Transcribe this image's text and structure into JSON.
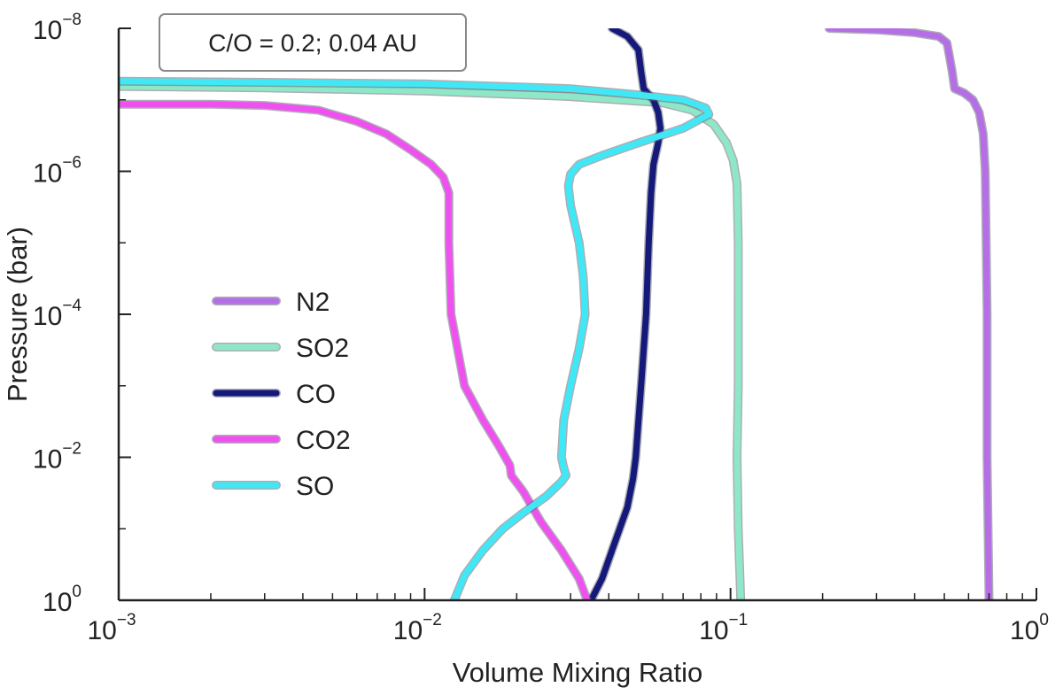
{
  "chart_data": {
    "type": "line",
    "title": "",
    "xlabel": "Volume Mixing Ratio",
    "ylabel": "Pressure (bar)",
    "xscale": "log",
    "yscale": "log",
    "xlim": [
      0.001,
      1
    ],
    "ylim": [
      1e-08,
      1
    ],
    "y_inverted": true,
    "grid": false,
    "x_ticks": [
      {
        "base": "10",
        "exp": "−3",
        "value": 0.001
      },
      {
        "base": "10",
        "exp": "−2",
        "value": 0.01
      },
      {
        "base": "10",
        "exp": "−1",
        "value": 0.1
      },
      {
        "base": "10",
        "exp": "0",
        "value": 1
      }
    ],
    "y_ticks": [
      {
        "base": "10",
        "exp": "−8",
        "value": 1e-08
      },
      {
        "base": "10",
        "exp": "−6",
        "value": 1e-06
      },
      {
        "base": "10",
        "exp": "−4",
        "value": 0.0001
      },
      {
        "base": "10",
        "exp": "−2",
        "value": 0.01
      },
      {
        "base": "10",
        "exp": "0",
        "value": 1
      }
    ],
    "annotation": "C/O = 0.2; 0.04 AU",
    "legend_position": "center-left",
    "series": [
      {
        "name": "N2",
        "color": "#b56ee6",
        "points": [
          [
            0.21,
            1e-08
          ],
          [
            0.3,
            1.05e-08
          ],
          [
            0.4,
            1.15e-08
          ],
          [
            0.48,
            1.3e-08
          ],
          [
            0.51,
            1.6e-08
          ],
          [
            0.52,
            2.5e-08
          ],
          [
            0.53,
            4e-08
          ],
          [
            0.54,
            7e-08
          ],
          [
            0.58,
            8e-08
          ],
          [
            0.62,
            1e-07
          ],
          [
            0.65,
            1.5e-07
          ],
          [
            0.67,
            3e-07
          ],
          [
            0.68,
            1e-06
          ],
          [
            0.685,
            1e-05
          ],
          [
            0.69,
            0.0001
          ],
          [
            0.69,
            0.001
          ],
          [
            0.69,
            0.01
          ],
          [
            0.695,
            0.1
          ],
          [
            0.7,
            1
          ]
        ]
      },
      {
        "name": "SO2",
        "color": "#8ee8c8",
        "points": [
          [
            0.001,
            6.5e-08
          ],
          [
            0.003,
            6.8e-08
          ],
          [
            0.01,
            7.5e-08
          ],
          [
            0.03,
            9e-08
          ],
          [
            0.06,
            1.1e-07
          ],
          [
            0.075,
            1.4e-07
          ],
          [
            0.088,
            2.2e-07
          ],
          [
            0.097,
            4e-07
          ],
          [
            0.102,
            7e-07
          ],
          [
            0.105,
            1.5e-06
          ],
          [
            0.106,
            1e-05
          ],
          [
            0.106,
            0.0001
          ],
          [
            0.106,
            0.001
          ],
          [
            0.105,
            0.01
          ],
          [
            0.106,
            0.1
          ],
          [
            0.108,
            1
          ]
        ]
      },
      {
        "name": "CO",
        "color": "#14197a",
        "points": [
          [
            0.041,
            1e-08
          ],
          [
            0.046,
            1.3e-08
          ],
          [
            0.05,
            2e-08
          ],
          [
            0.051,
            4e-08
          ],
          [
            0.052,
            7e-08
          ],
          [
            0.056,
            1e-07
          ],
          [
            0.058,
            1.5e-07
          ],
          [
            0.059,
            2.5e-07
          ],
          [
            0.058,
            4e-07
          ],
          [
            0.056,
            8e-07
          ],
          [
            0.055,
            2e-06
          ],
          [
            0.054,
            1e-05
          ],
          [
            0.053,
            0.0001
          ],
          [
            0.051,
            0.001
          ],
          [
            0.049,
            0.01
          ],
          [
            0.048,
            0.02
          ],
          [
            0.046,
            0.05
          ],
          [
            0.041,
            0.2
          ],
          [
            0.038,
            0.5
          ],
          [
            0.035,
            1
          ]
        ]
      },
      {
        "name": "CO2",
        "color": "#f050f0",
        "points": [
          [
            0.001,
            1.15e-07
          ],
          [
            0.002,
            1.15e-07
          ],
          [
            0.003,
            1.2e-07
          ],
          [
            0.0045,
            1.4e-07
          ],
          [
            0.005,
            1.6e-07
          ],
          [
            0.006,
            2e-07
          ],
          [
            0.0075,
            3e-07
          ],
          [
            0.009,
            5e-07
          ],
          [
            0.0105,
            8e-07
          ],
          [
            0.0115,
            1.2e-06
          ],
          [
            0.012,
            2e-06
          ],
          [
            0.012,
            1e-05
          ],
          [
            0.0122,
            0.0001
          ],
          [
            0.0135,
            0.001
          ],
          [
            0.0155,
            0.003
          ],
          [
            0.0175,
            0.007
          ],
          [
            0.019,
            0.013
          ],
          [
            0.0192,
            0.018
          ],
          [
            0.021,
            0.03
          ],
          [
            0.024,
            0.08
          ],
          [
            0.028,
            0.2
          ],
          [
            0.032,
            0.5
          ],
          [
            0.034,
            1
          ]
        ]
      },
      {
        "name": "SO",
        "color": "#40e8f5",
        "points": [
          [
            0.001,
            5.5e-08
          ],
          [
            0.003,
            5.7e-08
          ],
          [
            0.01,
            6e-08
          ],
          [
            0.03,
            7e-08
          ],
          [
            0.05,
            8.5e-08
          ],
          [
            0.07,
            1e-07
          ],
          [
            0.083,
            1.3e-07
          ],
          [
            0.085,
            1.6e-07
          ],
          [
            0.07,
            2.5e-07
          ],
          [
            0.05,
            4e-07
          ],
          [
            0.038,
            6e-07
          ],
          [
            0.032,
            8e-07
          ],
          [
            0.03,
            1.1e-06
          ],
          [
            0.0295,
            1.6e-06
          ],
          [
            0.03,
            3e-06
          ],
          [
            0.032,
            1e-05
          ],
          [
            0.033,
            3e-05
          ],
          [
            0.0335,
            0.0001
          ],
          [
            0.032,
            0.0003
          ],
          [
            0.03,
            0.001
          ],
          [
            0.0285,
            0.003
          ],
          [
            0.028,
            0.01
          ],
          [
            0.0285,
            0.014
          ],
          [
            0.029,
            0.018
          ],
          [
            0.028,
            0.022
          ],
          [
            0.025,
            0.035
          ],
          [
            0.021,
            0.06
          ],
          [
            0.018,
            0.1
          ],
          [
            0.0155,
            0.2
          ],
          [
            0.0135,
            0.45
          ],
          [
            0.0125,
            1
          ]
        ]
      }
    ]
  }
}
